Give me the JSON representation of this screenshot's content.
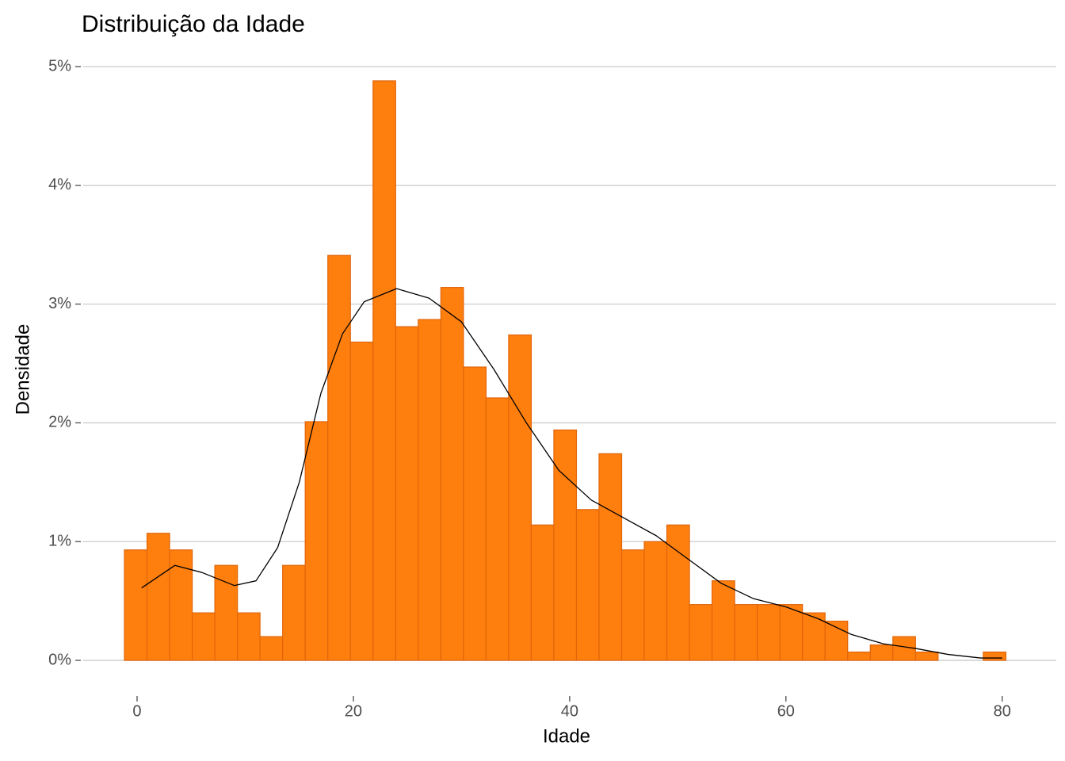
{
  "chart_data": {
    "type": "histogram",
    "title": "Distribuição da Idade",
    "x_label": "Idade",
    "y_label": "Densidade",
    "bins": [
      -1.17,
      0.92,
      3.01,
      5.1,
      7.19,
      9.28,
      11.37,
      13.46,
      15.55,
      17.64,
      19.73,
      21.82,
      23.91,
      26.0,
      28.09,
      30.18,
      32.27,
      34.36,
      36.45,
      38.54,
      40.63,
      42.72,
      44.81,
      46.9,
      48.99,
      51.08,
      53.17,
      55.26,
      57.35,
      59.44,
      61.53,
      63.62,
      65.71,
      67.8,
      69.89,
      71.98,
      74.07,
      76.16,
      78.25,
      80.34
    ],
    "values": [
      0.93,
      1.07,
      0.93,
      0.4,
      0.8,
      0.4,
      0.2,
      0.8,
      2.01,
      3.41,
      2.68,
      4.88,
      2.81,
      2.87,
      3.14,
      2.47,
      2.21,
      2.74,
      1.14,
      1.94,
      1.27,
      1.74,
      0.93,
      1.0,
      1.14,
      0.47,
      0.67,
      0.47,
      0.47,
      0.47,
      0.4,
      0.33,
      0.07,
      0.13,
      0.2,
      0.07,
      0,
      0,
      0.07
    ],
    "color": "#ff7f0e",
    "edge_color": "#e0650a",
    "density": {
      "color": "#000000",
      "x": [
        0.42,
        3.5,
        6,
        9,
        11,
        13,
        15,
        17,
        19,
        21,
        24,
        27,
        30,
        33,
        36,
        39,
        42,
        45,
        48,
        51,
        54,
        57,
        60,
        63,
        66,
        69,
        72,
        75,
        78,
        80
      ],
      "values": [
        0.61,
        0.8,
        0.74,
        0.63,
        0.67,
        0.95,
        1.5,
        2.25,
        2.75,
        3.02,
        3.13,
        3.05,
        2.85,
        2.45,
        2.0,
        1.6,
        1.35,
        1.2,
        1.05,
        0.85,
        0.65,
        0.52,
        0.45,
        0.35,
        0.22,
        0.14,
        0.1,
        0.05,
        0.02,
        0.02
      ]
    },
    "xlim": [
      -5,
      85
    ],
    "ylim": [
      -0.3,
      5.1
    ],
    "xticks": [
      0,
      20,
      40,
      60,
      80
    ],
    "yticks": [
      {
        "value": 0,
        "label": "0%"
      },
      {
        "value": 1,
        "label": "1%"
      },
      {
        "value": 2,
        "label": "2%"
      },
      {
        "value": 3,
        "label": "3%"
      },
      {
        "value": 4,
        "label": "4%"
      },
      {
        "value": 5,
        "label": "5%"
      }
    ],
    "grid": true
  }
}
